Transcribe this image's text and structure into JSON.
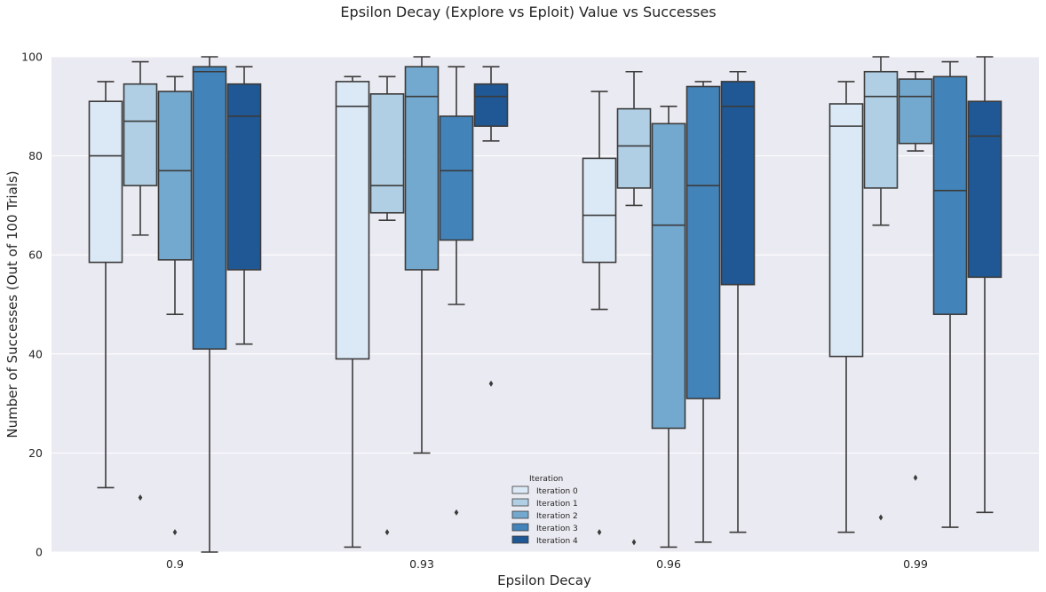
{
  "chart_data": {
    "type": "box",
    "title": "Epsilon Decay (Explore vs Eploit) Value vs Successes",
    "xlabel": "Epsilon Decay",
    "ylabel": "Number of Successes (Out of 100 Trials)",
    "ylim": [
      0,
      100
    ],
    "yticks": [
      0,
      20,
      40,
      60,
      80,
      100
    ],
    "categories": [
      "0.9",
      "0.93",
      "0.96",
      "0.99"
    ],
    "grid": true,
    "legend": {
      "title": "Iteration",
      "placement": "bottom-center"
    },
    "series": [
      {
        "name": "Iteration 0",
        "color": "#dbe8f5",
        "boxes": [
          {
            "whisker_low": 13,
            "q1": 58.5,
            "median": 80,
            "q3": 91,
            "whisker_high": 95,
            "outliers": []
          },
          {
            "whisker_low": 1,
            "q1": 39,
            "median": 90,
            "q3": 95,
            "whisker_high": 96,
            "outliers": []
          },
          {
            "whisker_low": 49,
            "q1": 58.5,
            "median": 68,
            "q3": 79.5,
            "whisker_high": 93,
            "outliers": [
              4
            ]
          },
          {
            "whisker_low": 4,
            "q1": 39.5,
            "median": 86,
            "q3": 90.5,
            "whisker_high": 95,
            "outliers": []
          }
        ]
      },
      {
        "name": "Iteration 1",
        "color": "#b0cfe4",
        "boxes": [
          {
            "whisker_low": 64,
            "q1": 74,
            "median": 87,
            "q3": 94.5,
            "whisker_high": 99,
            "outliers": [
              11
            ]
          },
          {
            "whisker_low": 67,
            "q1": 68.5,
            "median": 74,
            "q3": 92.5,
            "whisker_high": 96,
            "outliers": [
              4
            ]
          },
          {
            "whisker_low": 70,
            "q1": 73.5,
            "median": 82,
            "q3": 89.5,
            "whisker_high": 97,
            "outliers": [
              2
            ]
          },
          {
            "whisker_low": 66,
            "q1": 73.5,
            "median": 92,
            "q3": 97,
            "whisker_high": 100,
            "outliers": [
              7
            ]
          }
        ]
      },
      {
        "name": "Iteration 2",
        "color": "#74a9cf",
        "boxes": [
          {
            "whisker_low": 48,
            "q1": 59,
            "median": 77,
            "q3": 93,
            "whisker_high": 96,
            "outliers": [
              4
            ]
          },
          {
            "whisker_low": 20,
            "q1": 57,
            "median": 92,
            "q3": 98,
            "whisker_high": 100,
            "outliers": []
          },
          {
            "whisker_low": 1,
            "q1": 25,
            "median": 66,
            "q3": 86.5,
            "whisker_high": 90,
            "outliers": []
          },
          {
            "whisker_low": 81,
            "q1": 82.5,
            "median": 92,
            "q3": 95.5,
            "whisker_high": 97,
            "outliers": [
              15
            ]
          }
        ]
      },
      {
        "name": "Iteration 3",
        "color": "#4283b9",
        "boxes": [
          {
            "whisker_low": 0,
            "q1": 41,
            "median": 97,
            "q3": 98,
            "whisker_high": 100,
            "outliers": []
          },
          {
            "whisker_low": 50,
            "q1": 63,
            "median": 77,
            "q3": 88,
            "whisker_high": 98,
            "outliers": [
              8
            ]
          },
          {
            "whisker_low": 2,
            "q1": 31,
            "median": 74,
            "q3": 94,
            "whisker_high": 95,
            "outliers": []
          },
          {
            "whisker_low": 5,
            "q1": 48,
            "median": 73,
            "q3": 96,
            "whisker_high": 99,
            "outliers": []
          }
        ]
      },
      {
        "name": "Iteration 4",
        "color": "#1f5894",
        "boxes": [
          {
            "whisker_low": 42,
            "q1": 57,
            "median": 88,
            "q3": 94.5,
            "whisker_high": 98,
            "outliers": []
          },
          {
            "whisker_low": 83,
            "q1": 86,
            "median": 92,
            "q3": 94.5,
            "whisker_high": 98,
            "outliers": [
              34
            ]
          },
          {
            "whisker_low": 4,
            "q1": 54,
            "median": 90,
            "q3": 95,
            "whisker_high": 97,
            "outliers": []
          },
          {
            "whisker_low": 8,
            "q1": 55.5,
            "median": 84,
            "q3": 91,
            "whisker_high": 100,
            "outliers": []
          }
        ]
      }
    ]
  }
}
